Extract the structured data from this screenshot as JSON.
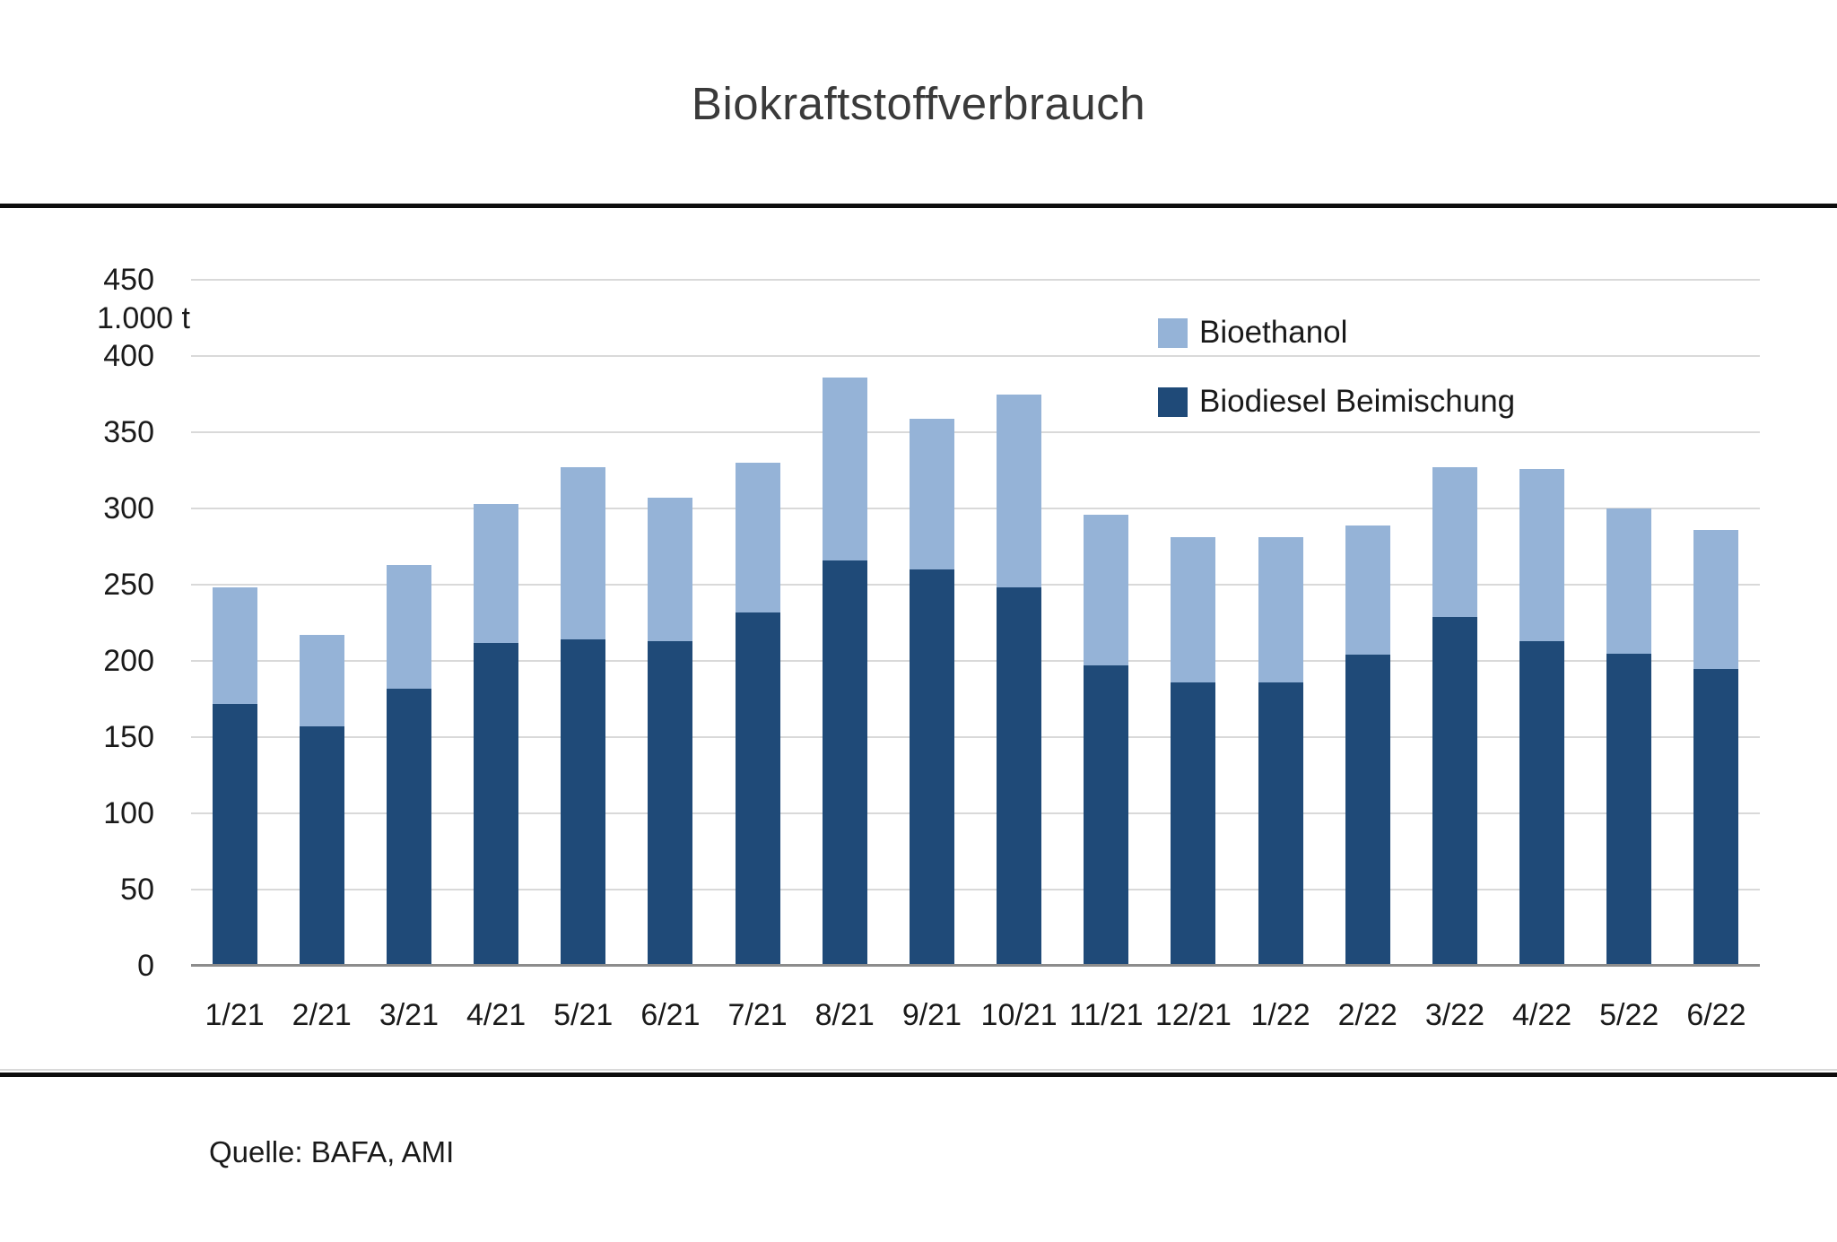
{
  "title": "Biokraftstoffverbrauch",
  "source_note": "Quelle: BAFA, AMI",
  "colors": {
    "bioethanol": "#95B3D7",
    "biodiesel": "#1F4A78",
    "gridline": "#D9D9D9",
    "axis_line": "#8C8C8C",
    "divider": "#0D0D0D",
    "title_text": "#3A3A3A"
  },
  "y_axis": {
    "unit_label": "1.000 t",
    "ticks": [
      450,
      400,
      350,
      300,
      250,
      200,
      150,
      100,
      50,
      0
    ],
    "min": 0,
    "max": 450
  },
  "legend": {
    "position": "top-right-inside",
    "items": [
      {
        "label": "Bioethanol",
        "color": "#95B3D7"
      },
      {
        "label": "Biodiesel Beimischung",
        "color": "#1F4A78"
      }
    ]
  },
  "chart_data": {
    "type": "bar",
    "stacked": true,
    "title": "Biokraftstoffverbrauch",
    "xlabel": "",
    "ylabel": "1.000 t",
    "ylim": [
      0,
      450
    ],
    "grid": true,
    "categories": [
      "1/21",
      "2/21",
      "3/21",
      "4/21",
      "5/21",
      "6/21",
      "7/21",
      "8/21",
      "9/21",
      "10/21",
      "11/21",
      "12/21",
      "1/22",
      "2/22",
      "3/22",
      "4/22",
      "5/22",
      "6/22"
    ],
    "series": [
      {
        "name": "Biodiesel Beimischung",
        "color": "#1F4A78",
        "values": [
          172,
          157,
          182,
          212,
          214,
          213,
          232,
          266,
          260,
          248,
          197,
          186,
          186,
          204,
          229,
          213,
          205,
          195
        ]
      },
      {
        "name": "Bioethanol",
        "color": "#95B3D7",
        "values": [
          76,
          60,
          81,
          91,
          113,
          94,
          98,
          120,
          99,
          127,
          99,
          95,
          95,
          85,
          98,
          113,
          95,
          91
        ]
      }
    ],
    "stack_totals": [
      248,
      217,
      263,
      303,
      327,
      307,
      330,
      386,
      359,
      375,
      296,
      281,
      281,
      289,
      327,
      326,
      300,
      286
    ]
  }
}
